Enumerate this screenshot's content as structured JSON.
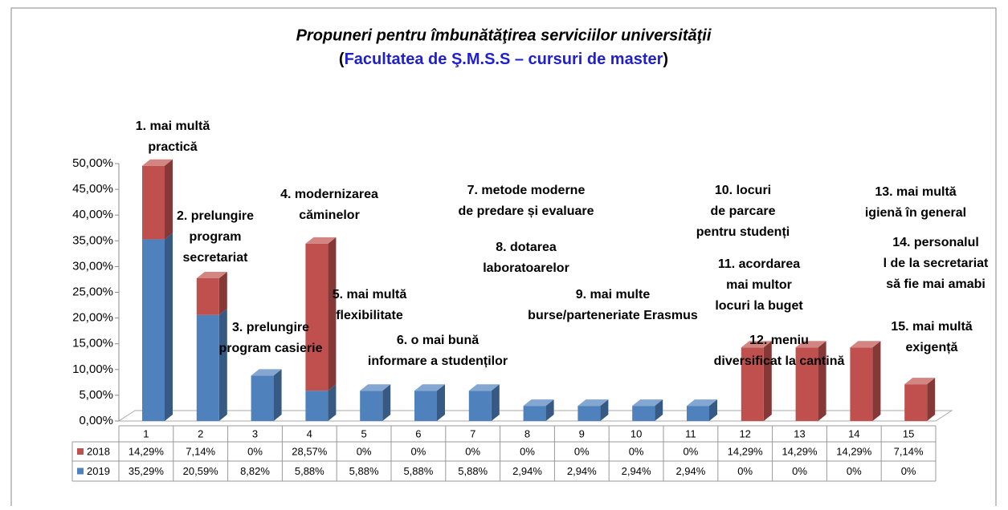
{
  "chart_data": {
    "type": "bar3d-stacked",
    "title": "Propuneri pentru îmbunătăţirea  serviciilor universităţii",
    "subtitle": [
      "(",
      "Facultatea de Ş.M.S.S – cursuri de master",
      ")"
    ],
    "categories": [
      "1",
      "2",
      "3",
      "4",
      "5",
      "6",
      "7",
      "8",
      "9",
      "10",
      "11",
      "12",
      "13",
      "14",
      "15"
    ],
    "series": [
      {
        "name": "2018",
        "color": "#c0504d",
        "values": [
          14.29,
          7.14,
          0,
          28.57,
          0,
          0,
          0,
          0,
          0,
          0,
          0,
          14.29,
          14.29,
          14.29,
          7.14
        ],
        "value_labels": [
          "14,29%",
          "7,14%",
          "0%",
          "28,57%",
          "0%",
          "0%",
          "0%",
          "0%",
          "0%",
          "0%",
          "0%",
          "14,29%",
          "14,29%",
          "14,29%",
          "7,14%"
        ]
      },
      {
        "name": "2019",
        "color": "#4f81bd",
        "values": [
          35.29,
          20.59,
          8.82,
          5.88,
          5.88,
          5.88,
          5.88,
          2.94,
          2.94,
          2.94,
          2.94,
          0,
          0,
          0,
          0
        ],
        "value_labels": [
          "35,29%",
          "20,59%",
          "8,82%",
          "5,88%",
          "5,88%",
          "5,88%",
          "5,88%",
          "2,94%",
          "2,94%",
          "2,94%",
          "2,94%",
          "0%",
          "0%",
          "0%",
          "0%"
        ]
      }
    ],
    "ylim": [
      0,
      50
    ],
    "yticks": [
      {
        "value": 0,
        "label": "0,00%"
      },
      {
        "value": 5,
        "label": "5,00%"
      },
      {
        "value": 10,
        "label": "10,00%"
      },
      {
        "value": 15,
        "label": "15,00%"
      },
      {
        "value": 20,
        "label": "20,00%"
      },
      {
        "value": 25,
        "label": "25,00%"
      },
      {
        "value": 30,
        "label": "30,00%"
      },
      {
        "value": 35,
        "label": "35,00%"
      },
      {
        "value": 40,
        "label": "40,00%"
      },
      {
        "value": 45,
        "label": "45,00%"
      },
      {
        "value": 50,
        "label": "50,00%"
      }
    ],
    "annotations": [
      [
        "1. mai multă",
        "practică"
      ],
      [
        "2. prelungire",
        "program",
        "secretariat"
      ],
      [
        "3. prelungire",
        "program casierie"
      ],
      [
        "4. modernizarea",
        "căminelor"
      ],
      [
        "5. mai multă",
        "flexibilitate"
      ],
      [
        "6. o mai bună",
        "informare a studenților"
      ],
      [
        "7. metode moderne",
        "de predare și evaluare"
      ],
      [
        "8. dotarea",
        "laboratoarelor"
      ],
      [
        "9. mai multe",
        "burse/parteneriate  Erasmus"
      ],
      [
        "10. locuri",
        "de parcare",
        "pentru studenți"
      ],
      [
        "11. acordarea",
        "mai multor",
        "locuri la buget"
      ],
      [
        "12. meniu",
        "diversificat la cantină"
      ],
      [
        "13. mai multă",
        "igienă în general"
      ],
      [
        "14. personalul",
        "l de la secretariat",
        "să fie mai amabi"
      ],
      [
        "15. mai multă",
        "exigență"
      ]
    ]
  }
}
